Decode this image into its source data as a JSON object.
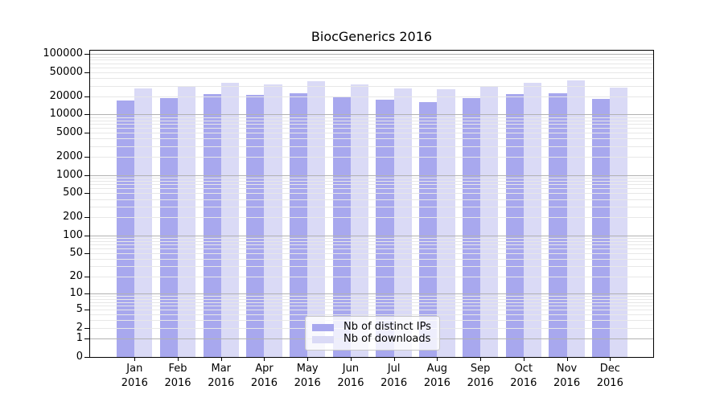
{
  "title": "BiocGenerics 2016",
  "chart_data": {
    "type": "bar",
    "title": "BiocGenerics 2016",
    "categories": [
      "Jan 2016",
      "Feb 2016",
      "Mar 2016",
      "Apr 2016",
      "May 2016",
      "Jun 2016",
      "Jul 2016",
      "Aug 2016",
      "Sep 2016",
      "Oct 2016",
      "Nov 2016",
      "Dec 2016"
    ],
    "series": [
      {
        "name": "Nb of distinct IPs",
        "color": "#a8a8ee",
        "values": [
          17200,
          18800,
          22000,
          21000,
          22600,
          19200,
          17500,
          16200,
          18900,
          22000,
          22600,
          18300
        ]
      },
      {
        "name": "Nb of downloads",
        "color": "#dadaf6",
        "values": [
          27200,
          29000,
          33700,
          31700,
          35900,
          31700,
          27200,
          26400,
          29900,
          33700,
          37000,
          28100
        ]
      }
    ],
    "y_axis": {
      "scale": "log10(1+v)",
      "tick_labels": [
        "0",
        "1",
        "2",
        "5",
        "10",
        "20",
        "50",
        "100",
        "200",
        "500",
        "1000",
        "2000",
        "5000",
        "10000",
        "20000",
        "50000",
        "100000"
      ],
      "range_top": 100000
    },
    "grid": true,
    "legend_position": "bottom-center"
  },
  "colors": {
    "bar_distinct_ips": "#a8a8ee",
    "bar_downloads": "#dadaf6",
    "grid_minor": "#e7e7e7",
    "grid_major": "#b2b2b2",
    "axis": "#000000",
    "legend_border": "#c8c8c8"
  }
}
